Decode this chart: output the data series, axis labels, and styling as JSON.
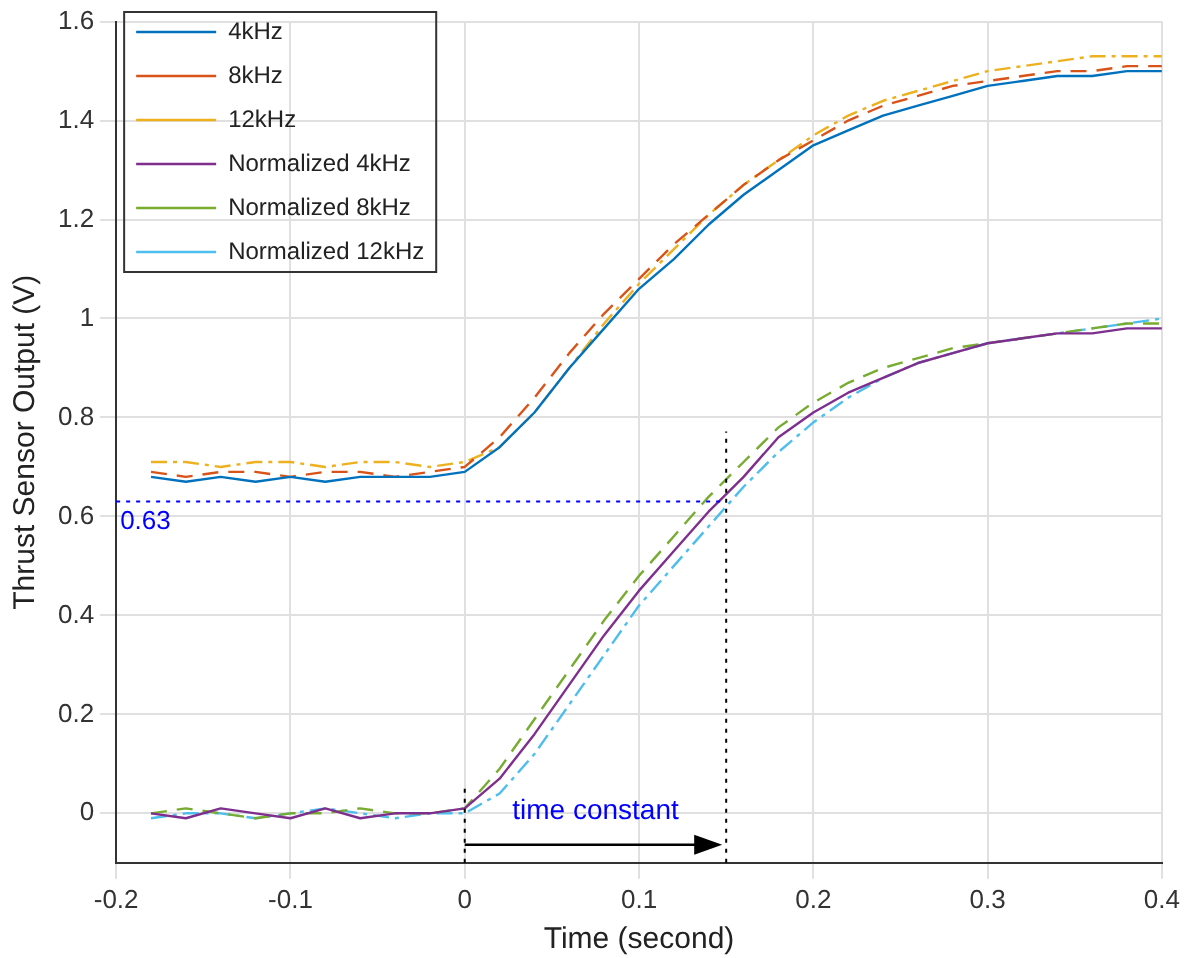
{
  "chart_data": {
    "type": "line",
    "xlabel": "Time (second)",
    "ylabel": "Thrust Sensor Output (V)",
    "x": [
      -0.18,
      -0.16,
      -0.14,
      -0.12,
      -0.1,
      -0.08,
      -0.06,
      -0.04,
      -0.02,
      0,
      0.02,
      0.04,
      0.06,
      0.08,
      0.1,
      0.12,
      0.14,
      0.16,
      0.18,
      0.2,
      0.22,
      0.24,
      0.26,
      0.28,
      0.3,
      0.32,
      0.34,
      0.36,
      0.38,
      0.4
    ],
    "series": [
      {
        "name": "4kHz",
        "color": "#0072bd",
        "line_style": "solid",
        "values": [
          0.68,
          0.67,
          0.68,
          0.67,
          0.68,
          0.67,
          0.68,
          0.68,
          0.68,
          0.69,
          0.74,
          0.81,
          0.9,
          0.98,
          1.06,
          1.12,
          1.19,
          1.25,
          1.3,
          1.35,
          1.38,
          1.41,
          1.43,
          1.45,
          1.47,
          1.48,
          1.49,
          1.49,
          1.5,
          1.5
        ]
      },
      {
        "name": "8kHz",
        "color": "#d95319",
        "line_style": "dashed",
        "values": [
          0.69,
          0.68,
          0.69,
          0.69,
          0.68,
          0.69,
          0.69,
          0.68,
          0.69,
          0.7,
          0.76,
          0.84,
          0.93,
          1.01,
          1.08,
          1.15,
          1.21,
          1.27,
          1.32,
          1.36,
          1.4,
          1.43,
          1.45,
          1.47,
          1.48,
          1.49,
          1.5,
          1.5,
          1.51,
          1.51
        ]
      },
      {
        "name": "12kHz",
        "color": "#edb120",
        "line_style": "dashdot",
        "values": [
          0.71,
          0.71,
          0.7,
          0.71,
          0.71,
          0.7,
          0.71,
          0.71,
          0.7,
          0.71,
          0.74,
          0.81,
          0.9,
          0.99,
          1.07,
          1.14,
          1.21,
          1.27,
          1.32,
          1.37,
          1.41,
          1.44,
          1.46,
          1.48,
          1.5,
          1.51,
          1.52,
          1.53,
          1.53,
          1.53
        ]
      },
      {
        "name": "Normalized 4kHz",
        "color": "#7e2f8e",
        "line_style": "solid",
        "values": [
          0.0,
          -0.01,
          0.01,
          0.0,
          -0.01,
          0.01,
          -0.01,
          0.0,
          0.0,
          0.01,
          0.07,
          0.16,
          0.26,
          0.36,
          0.45,
          0.53,
          0.61,
          0.68,
          0.76,
          0.81,
          0.85,
          0.88,
          0.91,
          0.93,
          0.95,
          0.96,
          0.97,
          0.97,
          0.98,
          0.98
        ]
      },
      {
        "name": "Normalized 8kHz",
        "color": "#77ac30",
        "line_style": "dashed",
        "values": [
          0.0,
          0.01,
          0.0,
          -0.01,
          0.0,
          0.0,
          0.01,
          0.0,
          0.0,
          0.01,
          0.09,
          0.19,
          0.29,
          0.39,
          0.48,
          0.56,
          0.64,
          0.71,
          0.78,
          0.83,
          0.87,
          0.9,
          0.92,
          0.94,
          0.95,
          0.96,
          0.97,
          0.98,
          0.99,
          0.99
        ]
      },
      {
        "name": "Normalized 12kHz",
        "color": "#4dbeee",
        "line_style": "dashdot",
        "values": [
          -0.01,
          0.0,
          0.0,
          -0.01,
          0.0,
          0.01,
          0.0,
          -0.01,
          0.0,
          0.0,
          0.04,
          0.12,
          0.22,
          0.32,
          0.42,
          0.5,
          0.58,
          0.66,
          0.73,
          0.79,
          0.84,
          0.88,
          0.91,
          0.93,
          0.95,
          0.96,
          0.97,
          0.98,
          0.99,
          1.0
        ]
      }
    ],
    "xlim": [
      -0.2,
      0.4
    ],
    "xticks": [
      -0.2,
      -0.1,
      0,
      0.1,
      0.2,
      0.3,
      0.4
    ],
    "ylim": [
      -0.1,
      1.6
    ],
    "yticks": [
      0,
      0.2,
      0.4,
      0.6,
      0.8,
      1,
      1.2,
      1.4,
      1.6
    ],
    "ref_lines": [
      {
        "axis": "y",
        "value": 0.63,
        "label": "0.63",
        "color": "#0000ff",
        "line_style": "dotted"
      },
      {
        "axis": "x",
        "value": 0.15,
        "label": null,
        "color": "#000000",
        "line_style": "dotted"
      },
      {
        "axis": "x",
        "value": 0,
        "label": null,
        "color": "#000000",
        "line_style": "dotted"
      }
    ],
    "annotations": [
      "time constant"
    ],
    "grid": true,
    "legend": "top left",
    "marker": "none"
  }
}
